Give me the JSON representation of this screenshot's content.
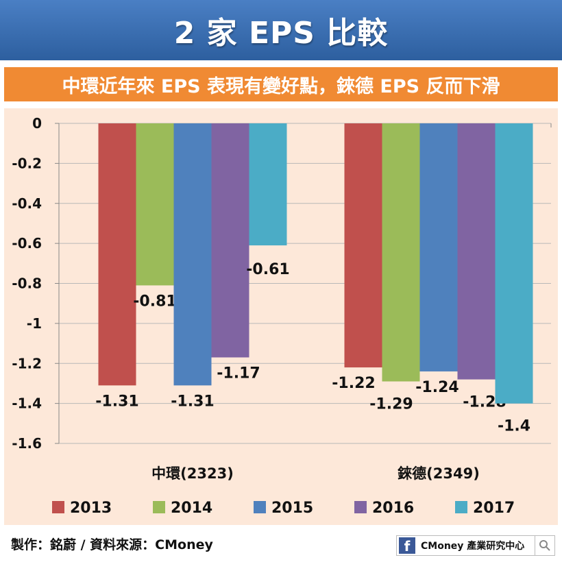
{
  "header": {
    "title": "2 家 EPS 比較",
    "subtitle": "中環近年來 EPS 表現有變好點，錸德 EPS 反而下滑"
  },
  "footer": {
    "credit": "製作：銘蔚 / 資料來源：CMoney",
    "brand_text": "CMoney 產業研究中心",
    "brand_icon": "facebook-icon",
    "search_icon": "search-icon"
  },
  "colors": {
    "title_bg": "#3a6eb4",
    "subtitle_bg": "#f08a33",
    "panel_bg": "#fde8d9"
  },
  "chart_data": {
    "type": "bar",
    "categories": [
      "中環(2323)",
      "錸德(2349)"
    ],
    "series": [
      {
        "name": "2013",
        "color": "#c0504d",
        "values": [
          -1.31,
          -1.22
        ]
      },
      {
        "name": "2014",
        "color": "#9bbb59",
        "values": [
          -0.81,
          -1.29
        ]
      },
      {
        "name": "2015",
        "color": "#4f81bd",
        "values": [
          -1.31,
          -1.24
        ]
      },
      {
        "name": "2016",
        "color": "#8064a2",
        "values": [
          -1.17,
          -1.28
        ]
      },
      {
        "name": "2017",
        "color": "#4bacc6",
        "values": [
          -0.61,
          -1.4
        ]
      }
    ],
    "data_labels": [
      [
        "-1.31",
        "-1.22"
      ],
      [
        "-0.81",
        "-1.29"
      ],
      [
        "-1.31",
        "-1.24"
      ],
      [
        "-1.17",
        "-1.28"
      ],
      [
        "-0.61",
        "-1.4"
      ]
    ],
    "yticks": [
      "0",
      "-0.2",
      "-0.4",
      "-0.6",
      "-0.8",
      "-1",
      "-1.2",
      "-1.4",
      "-1.6"
    ],
    "ylim": [
      -1.6,
      0
    ],
    "grid": true,
    "legend_position": "bottom"
  }
}
